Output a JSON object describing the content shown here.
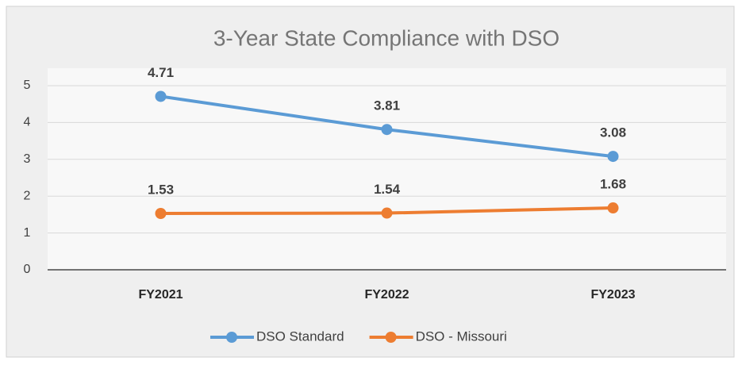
{
  "chart_data": {
    "type": "line",
    "title": "3-Year State Compliance with DSO",
    "categories": [
      "FY2021",
      "FY2022",
      "FY2023"
    ],
    "series": [
      {
        "name": "DSO Standard",
        "color": "#5b9bd5",
        "values": [
          4.71,
          3.81,
          3.08
        ]
      },
      {
        "name": "DSO - Missouri",
        "color": "#ed7d31",
        "values": [
          1.53,
          1.54,
          1.68
        ]
      }
    ],
    "ylim": [
      0,
      5
    ],
    "yticks": [
      0,
      1,
      2,
      3,
      4,
      5
    ],
    "grid": true,
    "legend": "bottom"
  }
}
